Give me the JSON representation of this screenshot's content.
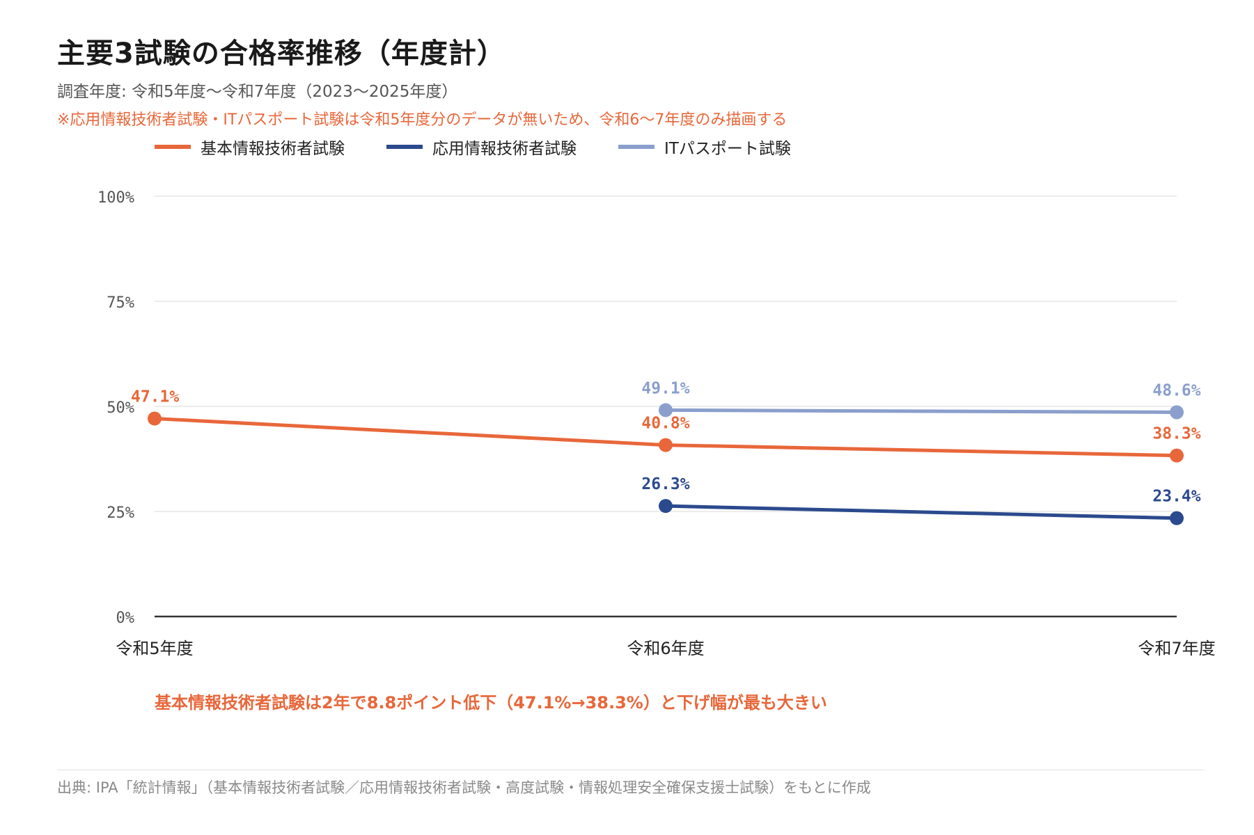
{
  "title": "主要3試験の合格率推移（年度計）",
  "subtitle": "調査年度: 令和5年度〜令和7年度（2023〜2025年度）",
  "note": "※応用情報技術者試験・ITパスポート試験は令和5年度分のデータが無いため、令和6〜7年度のみ描画する",
  "insight": "基本情報技術者試験は2年で8.8ポイント低下（47.1%→38.3%）と下げ幅が最も大きい",
  "source": "出典: IPA「統計情報」（基本情報技術者試験／応用情報技術者試験・高度試験・情報処理安全確保支援士試験）をもとに作成",
  "colors": {
    "fe": "#e8673a",
    "ap": "#2b4a8e",
    "ip": "#8a9fcc",
    "grid": "#e6e6e6",
    "axis": "#333333",
    "tick": "#555555"
  },
  "chart_data": {
    "type": "line",
    "categories": [
      "令和5年度",
      "令和6年度",
      "令和7年度"
    ],
    "ylim": [
      0,
      100
    ],
    "yticks": [
      "0%",
      "25%",
      "50%",
      "75%",
      "100%"
    ],
    "ytick_values": [
      0,
      25,
      50,
      75,
      100
    ],
    "grid": true,
    "legend_position": "top-left",
    "series": [
      {
        "name": "基本情報技術者試験",
        "color": "#e8673a",
        "values": [
          47.1,
          40.8,
          38.3
        ],
        "labels": [
          "47.1%",
          "40.8%",
          "38.3%"
        ]
      },
      {
        "name": "応用情報技術者試験",
        "color": "#2b4a8e",
        "values": [
          null,
          26.3,
          23.4
        ],
        "labels": [
          null,
          "26.3%",
          "23.4%"
        ]
      },
      {
        "name": "ITパスポート試験",
        "color": "#8a9fcc",
        "values": [
          null,
          49.1,
          48.6
        ],
        "labels": [
          null,
          "49.1%",
          "48.6%"
        ]
      }
    ]
  }
}
